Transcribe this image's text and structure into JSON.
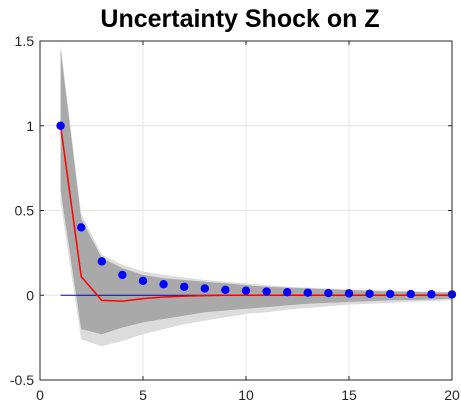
{
  "chart_data": {
    "type": "line",
    "title": "Uncertainty Shock on Z",
    "xlabel": "",
    "ylabel": "",
    "xlim": [
      0,
      20
    ],
    "ylim": [
      -0.5,
      1.5
    ],
    "x_ticks": [
      0,
      5,
      10,
      15,
      20
    ],
    "y_ticks": [
      -0.5,
      0,
      0.5,
      1,
      1.5
    ],
    "x_tick_labels": [
      "0",
      "5",
      "10",
      "15",
      "20"
    ],
    "y_tick_labels": [
      "-0.5",
      "0",
      "0.5",
      "1",
      "1.5"
    ],
    "grid": true,
    "x": [
      1,
      2,
      3,
      4,
      5,
      6,
      7,
      8,
      9,
      10,
      11,
      12,
      13,
      14,
      15,
      16,
      17,
      18,
      19,
      20
    ],
    "series": [
      {
        "role": "band_outer",
        "color": "#dcdcdc",
        "upper": [
          1.48,
          0.48,
          0.24,
          0.18,
          0.14,
          0.12,
          0.105,
          0.09,
          0.08,
          0.07,
          0.06,
          0.05,
          0.045,
          0.04,
          0.035,
          0.03,
          0.028,
          0.025,
          0.022,
          0.02
        ],
        "lower": [
          0.55,
          -0.26,
          -0.3,
          -0.27,
          -0.23,
          -0.2,
          -0.17,
          -0.15,
          -0.13,
          -0.11,
          -0.1,
          -0.085,
          -0.075,
          -0.065,
          -0.055,
          -0.05,
          -0.045,
          -0.04,
          -0.035,
          -0.03
        ]
      },
      {
        "role": "band_inner",
        "color": "#a9a9a9",
        "upper": [
          1.45,
          0.45,
          0.22,
          0.16,
          0.12,
          0.1,
          0.09,
          0.08,
          0.07,
          0.06,
          0.05,
          0.045,
          0.04,
          0.035,
          0.03,
          0.026,
          0.022,
          0.02,
          0.018,
          0.015
        ],
        "lower": [
          0.62,
          -0.2,
          -0.23,
          -0.19,
          -0.16,
          -0.14,
          -0.12,
          -0.1,
          -0.09,
          -0.08,
          -0.07,
          -0.06,
          -0.05,
          -0.045,
          -0.04,
          -0.035,
          -0.03,
          -0.028,
          -0.025,
          -0.02
        ]
      },
      {
        "role": "median",
        "color": "#ff0000",
        "values": [
          1.0,
          0.11,
          -0.03,
          -0.035,
          -0.02,
          -0.01,
          -0.005,
          -0.002,
          0.0,
          0.0,
          0.0,
          0.0,
          0.0,
          0.0,
          0.0,
          0.0,
          0.0,
          0.0,
          0.0,
          0.0
        ]
      },
      {
        "role": "points",
        "color": "#0000ff",
        "values": [
          1.0,
          0.4,
          0.2,
          0.12,
          0.085,
          0.065,
          0.05,
          0.04,
          0.032,
          0.027,
          0.022,
          0.018,
          0.015,
          0.013,
          0.011,
          0.009,
          0.008,
          0.007,
          0.006,
          0.005
        ]
      },
      {
        "role": "zero_line",
        "color": "#0000cc",
        "from": 1,
        "to": 20,
        "value": 0
      }
    ]
  }
}
